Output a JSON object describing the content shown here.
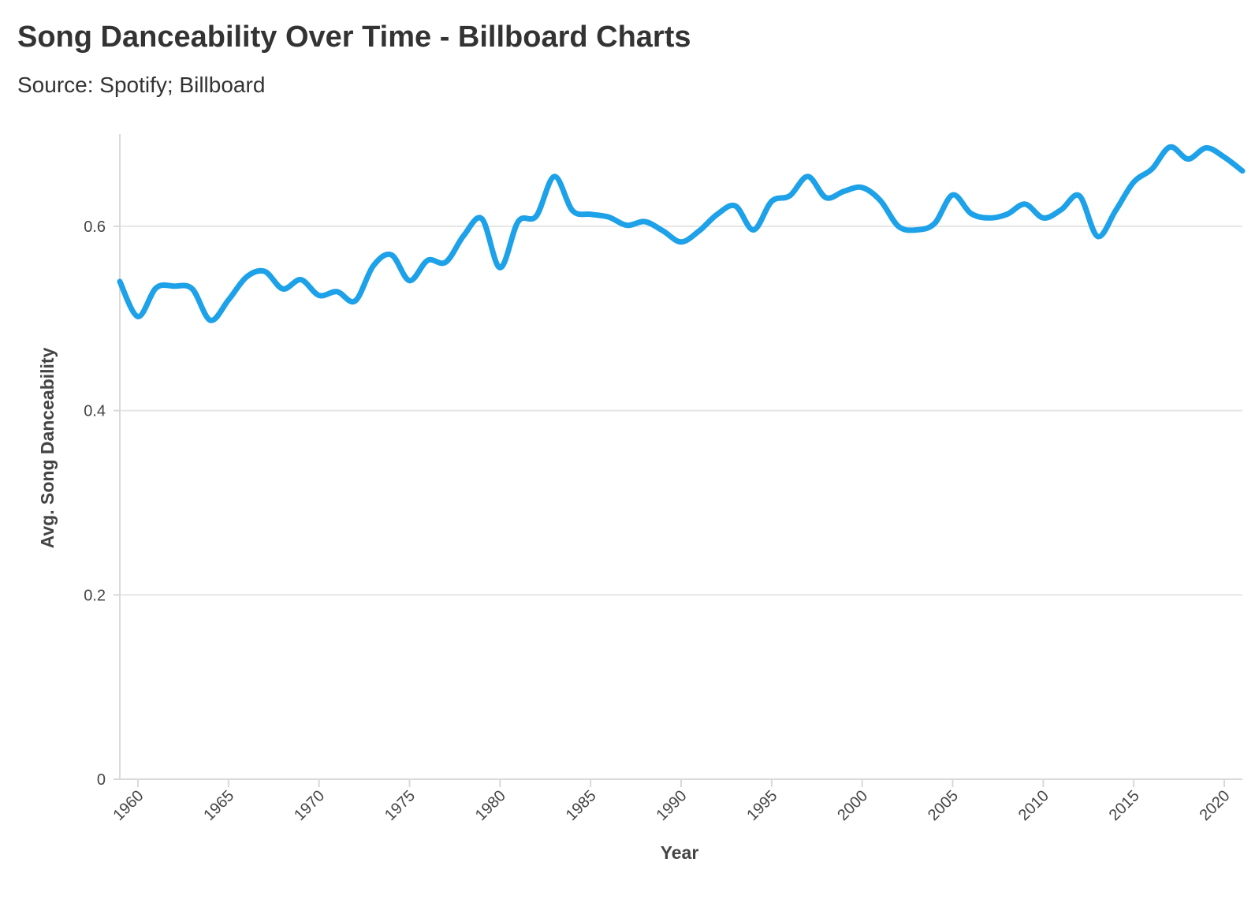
{
  "title": "Song Danceability Over Time - Billboard Charts",
  "subtitle": "Source: Spotify; Billboard",
  "colors": {
    "line": "#1da1e8",
    "grid": "#e6e6e6",
    "axis": "#d9d9d9"
  },
  "chart_data": {
    "type": "line",
    "title": "Song Danceability Over Time - Billboard Charts",
    "subtitle": "Source: Spotify; Billboard",
    "xlabel": "Year",
    "ylabel": "Avg. Song Danceability",
    "xlim": [
      1959,
      2021
    ],
    "ylim": [
      0,
      0.7
    ],
    "x_ticks": [
      1960,
      1965,
      1970,
      1975,
      1980,
      1985,
      1990,
      1995,
      2000,
      2005,
      2010,
      2015,
      2020
    ],
    "y_ticks": [
      0,
      0.2,
      0.4,
      0.6
    ],
    "y_tick_labels": [
      "0",
      "0.2",
      "0.4",
      "0.6"
    ],
    "grid": "horizontal",
    "x": [
      1959,
      1960,
      1961,
      1962,
      1963,
      1964,
      1965,
      1966,
      1967,
      1968,
      1969,
      1970,
      1971,
      1972,
      1973,
      1974,
      1975,
      1976,
      1977,
      1978,
      1979,
      1980,
      1981,
      1982,
      1983,
      1984,
      1985,
      1986,
      1987,
      1988,
      1989,
      1990,
      1991,
      1992,
      1993,
      1994,
      1995,
      1996,
      1997,
      1998,
      1999,
      2000,
      2001,
      2002,
      2003,
      2004,
      2005,
      2006,
      2007,
      2008,
      2009,
      2010,
      2011,
      2012,
      2013,
      2014,
      2015,
      2016,
      2017,
      2018,
      2019,
      2020,
      2021
    ],
    "series": [
      {
        "values": [
          0.54,
          0.502,
          0.533,
          0.535,
          0.532,
          0.498,
          0.52,
          0.545,
          0.551,
          0.532,
          0.542,
          0.525,
          0.529,
          0.519,
          0.557,
          0.569,
          0.541,
          0.563,
          0.561,
          0.59,
          0.608,
          0.555,
          0.605,
          0.611,
          0.654,
          0.617,
          0.613,
          0.61,
          0.601,
          0.605,
          0.595,
          0.583,
          0.595,
          0.613,
          0.622,
          0.596,
          0.627,
          0.633,
          0.654,
          0.631,
          0.638,
          0.642,
          0.628,
          0.6,
          0.596,
          0.603,
          0.634,
          0.614,
          0.609,
          0.613,
          0.624,
          0.609,
          0.618,
          0.633,
          0.589,
          0.617,
          0.648,
          0.662,
          0.686,
          0.673,
          0.685,
          0.675,
          0.66
        ]
      }
    ]
  }
}
